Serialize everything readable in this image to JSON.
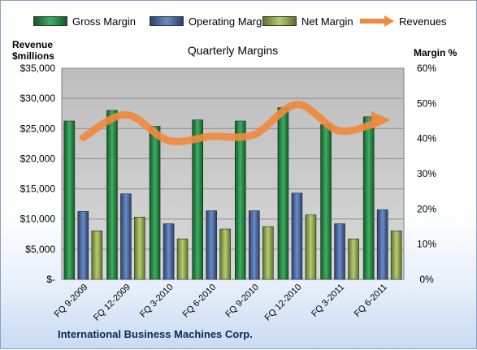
{
  "chart_data": {
    "type": "bar",
    "title": "Quarterly Margins",
    "categories": [
      "FQ 9-2009",
      "FQ 12-2009",
      "FQ 3-2010",
      "FQ 6-2010",
      "FQ 9-2010",
      "FQ 12-2010",
      "FQ 3-2011",
      "FQ 6-2011"
    ],
    "left_axis": {
      "title_line1": "Revenue",
      "title_line2": "$millions",
      "ticks": [
        "$-",
        "$5,000",
        "$10,000",
        "$15,000",
        "$20,000",
        "$25,000",
        "$30,000",
        "$35,000"
      ],
      "ylim": [
        0,
        35000
      ]
    },
    "right_axis": {
      "title": "Margin %",
      "ticks": [
        "0%",
        "10%",
        "20%",
        "30%",
        "40%",
        "50%",
        "60%"
      ],
      "ylim": [
        0,
        60
      ]
    },
    "series": [
      {
        "name": "Gross Margin",
        "type": "bar",
        "axis": "right",
        "values": [
          45.0,
          48.0,
          43.5,
          45.3,
          45.0,
          48.8,
          44.0,
          46.2
        ]
      },
      {
        "name": "Operating Margin",
        "type": "bar",
        "axis": "right",
        "values": [
          19.3,
          24.3,
          15.8,
          19.5,
          19.5,
          24.5,
          15.8,
          19.8
        ]
      },
      {
        "name": "Net Margin",
        "type": "bar",
        "axis": "right",
        "values": [
          13.8,
          17.7,
          11.5,
          14.3,
          15.0,
          18.3,
          11.5,
          13.8
        ]
      },
      {
        "name": "Revenues",
        "type": "line",
        "axis": "left",
        "values": [
          23500,
          27300,
          23000,
          23700,
          24000,
          29000,
          24600,
          26400
        ]
      }
    ],
    "colors": {
      "gross": "#1e7a3e",
      "operating": "#3d5f9a",
      "net": "#8aa34a",
      "revenues": "#f08a3e",
      "plot_bg": "#c8c8c8",
      "grid": "#8c8c8c"
    },
    "grid": true,
    "legend": "top"
  },
  "footer": {
    "company": "International Business Machines Corp."
  }
}
